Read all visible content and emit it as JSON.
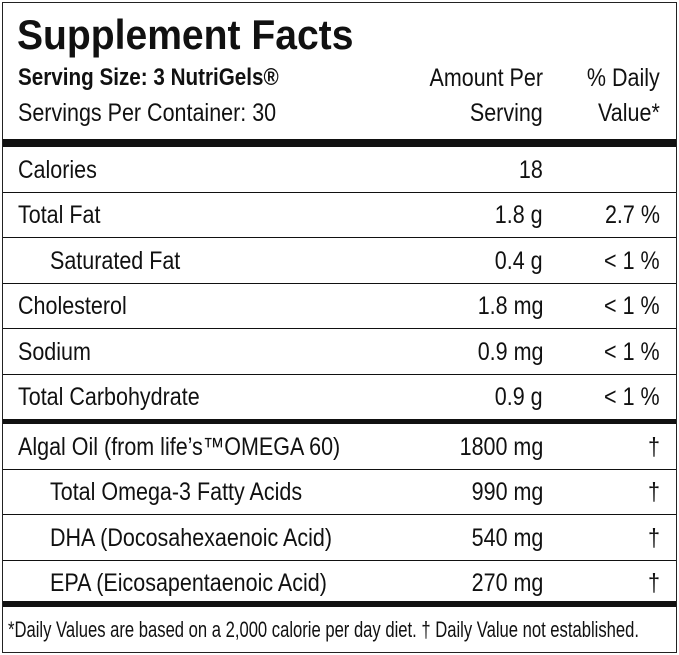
{
  "header": {
    "title": "Supplement Facts",
    "serving_size": "Serving Size: 3 NutriGels®",
    "servings_per_container": "Servings Per Container: 30",
    "amount_per_serving": [
      "Amount Per",
      "Serving"
    ],
    "daily_value": [
      "% Daily",
      "Value*"
    ]
  },
  "table": {
    "rows": [
      {
        "name": "Calories",
        "amount": "18"
      },
      {
        "name": "Total Fat",
        "amount": "1.8 g",
        "dv": "2.7 %"
      },
      {
        "name": "Saturated Fat",
        "amount": "0.4 g",
        "dv": "< 1 %",
        "indent": true
      },
      {
        "name": "Cholesterol",
        "amount": "1.8 mg",
        "dv": "< 1 %"
      },
      {
        "name": "Sodium",
        "amount": "0.9 mg",
        "dv": "< 1 %"
      },
      {
        "name": "Total Carbohydrate",
        "amount": "0.9 g",
        "dv": "< 1 %"
      },
      {
        "name": "Algal Oil (from life’s™OMEGA 60)",
        "amount": "1800 mg",
        "dv": "†"
      },
      {
        "name": "Total Omega-3 Fatty Acids",
        "amount": "990 mg",
        "dv": "†",
        "indent": true
      },
      {
        "name": "DHA (Docosahexaenoic Acid)",
        "amount": "540 mg",
        "dv": "†",
        "indent": true
      },
      {
        "name": "EPA (Eicosapentaenoic Acid)",
        "amount": "270 mg",
        "dv": "†",
        "indent": true
      }
    ]
  },
  "footer": "*Daily Values are based on a 2,000 calorie per day diet. † Daily Value not established."
}
